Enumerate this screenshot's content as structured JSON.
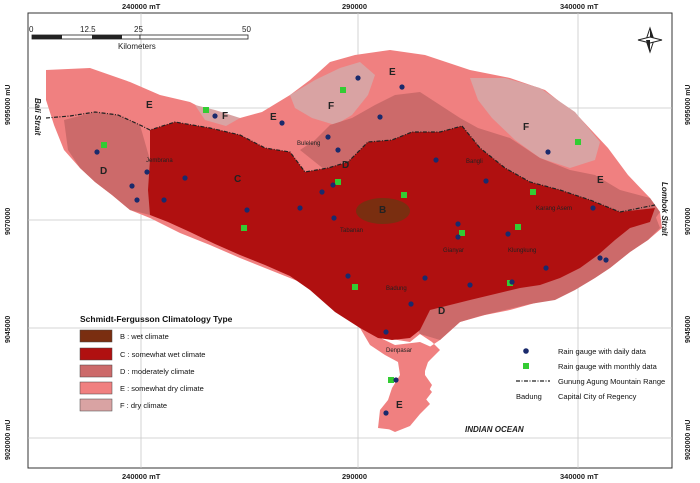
{
  "coords": {
    "top": [
      "240000 mT",
      "290000",
      "340000 mT"
    ],
    "bottom": [
      "240000 mT",
      "290000",
      "340000 mT"
    ],
    "left": [
      "9095000 mU",
      "9070000",
      "9045000",
      "9020000 mU"
    ],
    "right": [
      "9095000 mU",
      "9070000",
      "9045000",
      "9020000 mU"
    ]
  },
  "scale": {
    "ticks": [
      "0",
      "12.5",
      "25",
      "50"
    ],
    "unit": "Kilometers"
  },
  "water_labels": {
    "bali_strait": "Bali Strait",
    "lombok_strait": "Lombok Strait",
    "indian_ocean": "INDIAN OCEAN"
  },
  "zone_labels": [
    "E",
    "F",
    "E",
    "F",
    "E",
    "D",
    "D",
    "C",
    "B",
    "E",
    "D",
    "E",
    "F"
  ],
  "cities": [
    "Jembrana",
    "Buleleng",
    "Bangli",
    "Tabanan",
    "Gianyar",
    "Karang Asem",
    "Klungkung",
    "Badung",
    "Denpasar"
  ],
  "legend": {
    "title": "Schmidt-Fergusson Climatology Type",
    "items": [
      {
        "label": "B : wet climate",
        "color": "#7a2e10"
      },
      {
        "label": "C : somewhat wet climate",
        "color": "#b01010"
      },
      {
        "label": "D : moderately climate",
        "color": "#cc6a6a"
      },
      {
        "label": "E : somewhat dry climate",
        "color": "#f08080"
      },
      {
        "label": "F : dry climate",
        "color": "#d9a3a3"
      }
    ]
  },
  "symbol_legend": {
    "items": [
      {
        "label": "Rain gauge with daily data",
        "color": "#1a2a6c"
      },
      {
        "label": "Rain gauge with monthly data",
        "color": "#33cc33"
      },
      {
        "label": "Gunung Agung Mountain Range"
      }
    ],
    "capital_sample": "Badung",
    "capital_label": "Capital City of Regency"
  },
  "daily_gauges": [
    [
      358,
      78
    ],
    [
      402,
      87
    ],
    [
      282,
      123
    ],
    [
      215,
      116
    ],
    [
      380,
      117
    ],
    [
      328,
      137
    ],
    [
      338,
      150
    ],
    [
      97,
      152
    ],
    [
      147,
      172
    ],
    [
      185,
      178
    ],
    [
      132,
      186
    ],
    [
      137,
      200
    ],
    [
      164,
      200
    ],
    [
      247,
      210
    ],
    [
      322,
      192
    ],
    [
      333,
      185
    ],
    [
      334,
      218
    ],
    [
      300,
      208
    ],
    [
      436,
      160
    ],
    [
      486,
      181
    ],
    [
      548,
      152
    ],
    [
      593,
      208
    ],
    [
      458,
      224
    ],
    [
      458,
      237
    ],
    [
      508,
      234
    ],
    [
      600,
      258
    ],
    [
      606,
      260
    ],
    [
      546,
      268
    ],
    [
      512,
      282
    ],
    [
      470,
      285
    ],
    [
      425,
      278
    ],
    [
      348,
      276
    ],
    [
      411,
      304
    ],
    [
      386,
      332
    ],
    [
      396,
      380
    ],
    [
      386,
      413
    ]
  ],
  "monthly_gauges": [
    [
      343,
      90
    ],
    [
      206,
      110
    ],
    [
      104,
      145
    ],
    [
      338,
      182
    ],
    [
      404,
      195
    ],
    [
      533,
      192
    ],
    [
      518,
      227
    ],
    [
      462,
      233
    ],
    [
      244,
      228
    ],
    [
      355,
      287
    ],
    [
      391,
      380
    ],
    [
      578,
      142
    ],
    [
      510,
      283
    ]
  ]
}
